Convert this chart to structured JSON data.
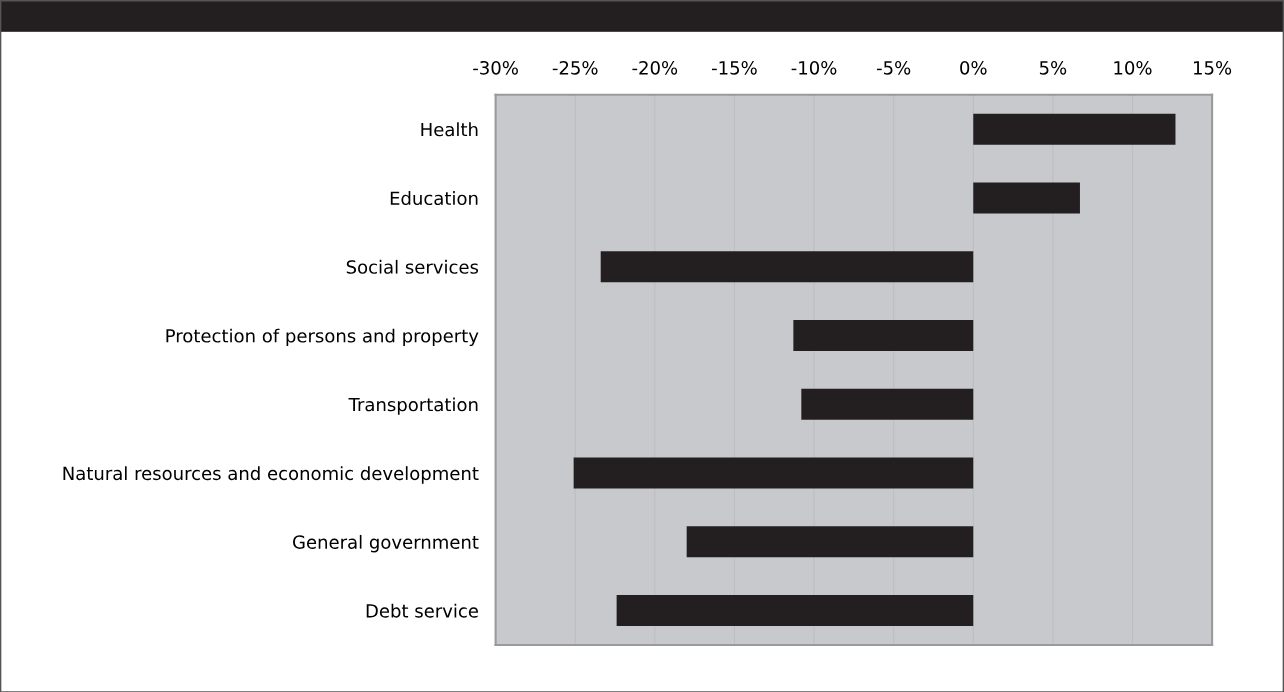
{
  "chart_data": {
    "type": "bar",
    "orientation": "horizontal",
    "categories": [
      "Health",
      "Education",
      "Social services",
      "Protection of persons and property",
      "Transportation",
      "Natural resources and economic development",
      "General government",
      "Debt service"
    ],
    "values": [
      12.7,
      6.7,
      -23.4,
      -11.3,
      -10.8,
      -25.1,
      -18.0,
      -22.4
    ],
    "color": "#231f20",
    "xlim": [
      -30,
      15
    ],
    "xticks": [
      {
        "value": -30,
        "label": "-30%"
      },
      {
        "value": -25,
        "label": "-25%"
      },
      {
        "value": -20,
        "label": "-20%"
      },
      {
        "value": -15,
        "label": "-15%"
      },
      {
        "value": -10,
        "label": "-10%"
      },
      {
        "value": -5,
        "label": "-5%"
      },
      {
        "value": 0,
        "label": "0%"
      },
      {
        "value": 5,
        "label": "5%"
      },
      {
        "value": 10,
        "label": "10%"
      },
      {
        "value": 15,
        "label": "15%"
      }
    ],
    "grid": "x",
    "legend": false
  }
}
